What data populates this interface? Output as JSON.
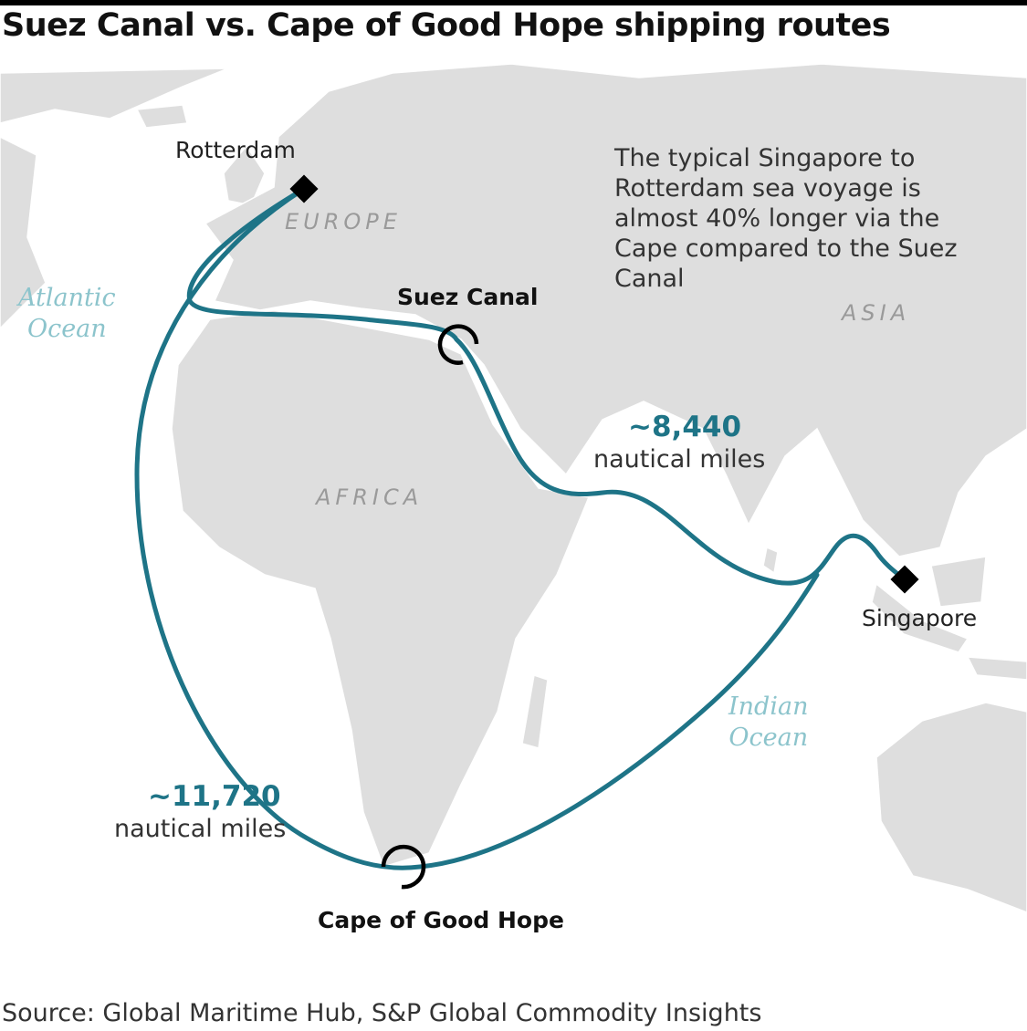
{
  "title": "Suez Canal vs. Cape of Good Hope shipping routes",
  "colors": {
    "route": "#1e7487",
    "land": "#dedede",
    "sea": "#ffffff",
    "marker": "#000000",
    "ocean_label": "#8cc4cc"
  },
  "places": {
    "rotterdam": "Rotterdam",
    "singapore": "Singapore",
    "suez": "Suez Canal",
    "cape": "Cape of Good Hope"
  },
  "regions": {
    "europe": "EUROPE",
    "africa": "AFRICA",
    "asia": "ASIA"
  },
  "oceans": {
    "atlantic": [
      "Atlantic",
      "Ocean"
    ],
    "indian": [
      "Indian",
      "Ocean"
    ]
  },
  "routes": {
    "suez": {
      "distance": "~8,440",
      "unit": "nautical miles"
    },
    "cape": {
      "distance": "~11,720",
      "unit": "nautical miles"
    }
  },
  "annotation": "The typical Singapore to Rotterdam sea voyage is almost 40% longer via the Cape compared to the Suez Canal",
  "source": "Source: Global Maritime Hub, S&P Global Commodity Insights",
  "icons": {
    "port_marker": "diamond-icon",
    "chokepoint_marker": "open-circle-icon"
  }
}
